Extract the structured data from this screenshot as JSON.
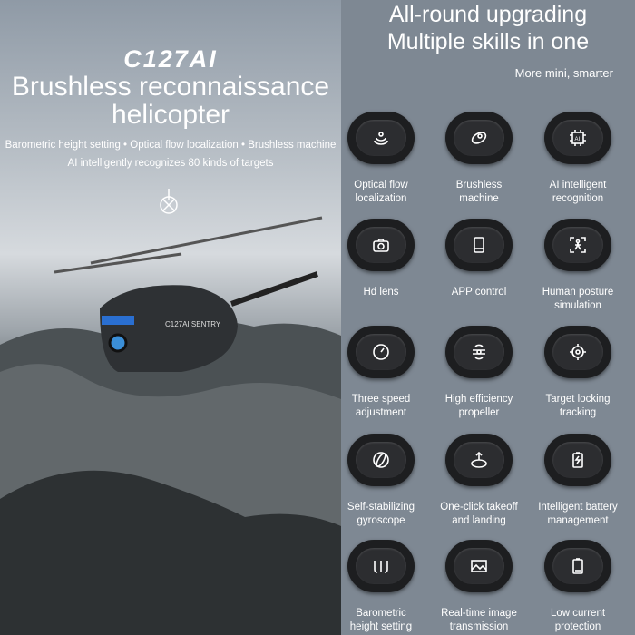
{
  "left": {
    "brand": "C127AI",
    "title_line1": "Brushless reconnaissance",
    "title_line2": "helicopter",
    "subtitle1": "Barometric height setting  • Optical flow localization • Brushless machine",
    "subtitle2": "AI intelligently recognizes 80 kinds of targets",
    "product_label": "C127AI SENTRY"
  },
  "right": {
    "heading1": "All-round upgrading",
    "heading2": "Multiple skills in one",
    "tagline": "More mini, smarter",
    "features": [
      {
        "label": "Optical flow\nlocalization",
        "icon": "optical-flow-icon"
      },
      {
        "label": "Brushless\nmachine",
        "icon": "motor-icon"
      },
      {
        "label": "AI intelligent\nrecognition",
        "icon": "ai-chip-icon"
      },
      {
        "label": "Hd lens",
        "icon": "camera-icon"
      },
      {
        "label": "APP control",
        "icon": "phone-icon"
      },
      {
        "label": "Human posture\nsimulation",
        "icon": "human-scan-icon"
      },
      {
        "label": "Three speed\nadjustment",
        "icon": "speedometer-icon"
      },
      {
        "label": "High efficiency\npropeller",
        "icon": "propeller-icon"
      },
      {
        "label": "Target locking\ntracking",
        "icon": "target-icon"
      },
      {
        "label": "Self-stabilizing\ngyroscope",
        "icon": "gyroscope-icon"
      },
      {
        "label": "One-click takeoff\nand landing",
        "icon": "takeoff-icon"
      },
      {
        "label": "Intelligent battery\nmanagement",
        "icon": "battery-icon"
      },
      {
        "label": "Barometric\nheight setting",
        "icon": "barometer-icon"
      },
      {
        "label": "Real-time image\ntransmission",
        "icon": "image-icon"
      },
      {
        "label": "Low current\nprotection",
        "icon": "low-battery-icon"
      }
    ]
  }
}
